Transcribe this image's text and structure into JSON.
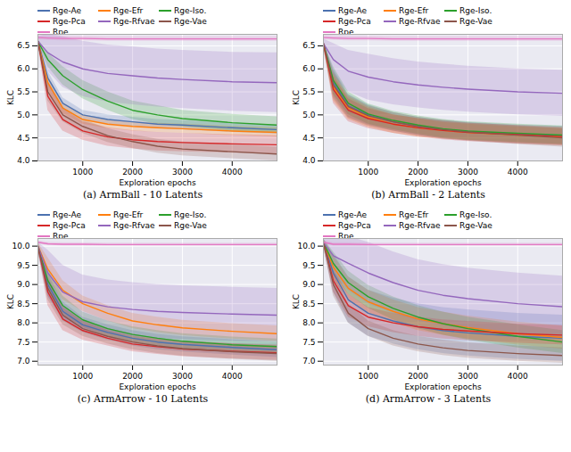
{
  "chart_data": [
    {
      "type": "line",
      "title": "(a) ArmBall - 10 Latents",
      "x_label": "Exploration epochs",
      "y_label": "KLC",
      "x": [
        100,
        300,
        600,
        1000,
        1500,
        2000,
        2500,
        3000,
        4000,
        4900
      ],
      "xlim": [
        100,
        4900
      ],
      "xticks": [
        1000,
        2000,
        3000,
        4000
      ],
      "ylim": [
        4.0,
        6.75
      ],
      "yticks": [
        {
          "value": 4,
          "label": "4.0"
        },
        4.5,
        {
          "value": 5,
          "label": "5.0"
        },
        5.5,
        {
          "value": 6,
          "label": "6.0"
        },
        6.5
      ],
      "grid": true,
      "legend": "top",
      "series": [
        {
          "name": "Rge-Ae",
          "color": "#4c72b0",
          "values": [
            6.6,
            5.8,
            5.25,
            5.0,
            4.9,
            4.85,
            4.8,
            4.78,
            4.72,
            4.68
          ],
          "std": [
            0.05,
            0.15,
            0.12,
            0.1,
            0.1,
            0.1,
            0.1,
            0.1,
            0.1,
            0.1
          ]
        },
        {
          "name": "Rge-Efr",
          "color": "#ff7f0e",
          "values": [
            6.6,
            5.7,
            5.15,
            4.9,
            4.8,
            4.75,
            4.72,
            4.7,
            4.65,
            4.62
          ],
          "std": [
            0.05,
            0.15,
            0.12,
            0.1,
            0.1,
            0.1,
            0.1,
            0.1,
            0.1,
            0.1
          ]
        },
        {
          "name": "Rge-Iso.",
          "color": "#2ca02c",
          "values": [
            6.6,
            6.2,
            5.85,
            5.55,
            5.3,
            5.1,
            5.0,
            4.92,
            4.83,
            4.78
          ],
          "std": [
            0.05,
            0.15,
            0.2,
            0.2,
            0.2,
            0.2,
            0.2,
            0.18,
            0.18,
            0.18
          ]
        },
        {
          "name": "Rge-Pca",
          "color": "#d62728",
          "values": [
            6.6,
            5.4,
            4.9,
            4.65,
            4.52,
            4.46,
            4.42,
            4.4,
            4.37,
            4.35
          ],
          "std": [
            0.05,
            0.3,
            0.25,
            0.2,
            0.2,
            0.2,
            0.2,
            0.2,
            0.2,
            0.2
          ]
        },
        {
          "name": "Rge-Rfvae",
          "color": "#9467bd",
          "values": [
            6.6,
            6.35,
            6.15,
            6.0,
            5.9,
            5.85,
            5.8,
            5.77,
            5.72,
            5.7
          ],
          "std": [
            0.1,
            0.4,
            0.55,
            0.6,
            0.62,
            0.63,
            0.63,
            0.63,
            0.64,
            0.65
          ]
        },
        {
          "name": "Rge-Vae",
          "color": "#8c564b",
          "values": [
            6.6,
            5.5,
            5.0,
            4.75,
            4.55,
            4.42,
            4.32,
            4.26,
            4.2,
            4.15
          ],
          "std": [
            0.05,
            0.2,
            0.15,
            0.15,
            0.15,
            0.15,
            0.15,
            0.15,
            0.15,
            0.15
          ]
        },
        {
          "name": "Rpe",
          "color": "#e377c2",
          "values": [
            6.68,
            6.67,
            6.66,
            6.66,
            6.65,
            6.65,
            6.65,
            6.65,
            6.65,
            6.65
          ],
          "std": [
            0.05,
            0.05,
            0.05,
            0.05,
            0.05,
            0.05,
            0.05,
            0.05,
            0.05,
            0.05
          ]
        }
      ]
    },
    {
      "type": "line",
      "title": "(b) ArmBall - 2 Latents",
      "x_label": "Exploration epochs",
      "y_label": "KLC",
      "x": [
        100,
        300,
        600,
        1000,
        1500,
        2000,
        2500,
        3000,
        4000,
        4900
      ],
      "xlim": [
        100,
        4900
      ],
      "xticks": [
        1000,
        2000,
        3000,
        4000
      ],
      "ylim": [
        4.0,
        6.75
      ],
      "yticks": [
        {
          "value": 4,
          "label": "4.0"
        },
        4.5,
        {
          "value": 5,
          "label": "5.0"
        },
        5.5,
        {
          "value": 6,
          "label": "6.0"
        },
        6.5
      ],
      "grid": true,
      "legend": "top",
      "series": [
        {
          "name": "Rge-Ae",
          "color": "#4c72b0",
          "values": [
            6.55,
            5.7,
            5.2,
            5.0,
            4.85,
            4.75,
            4.68,
            4.64,
            4.58,
            4.55
          ],
          "std": [
            0.05,
            0.3,
            0.25,
            0.22,
            0.2,
            0.2,
            0.2,
            0.2,
            0.2,
            0.2
          ]
        },
        {
          "name": "Rge-Efr",
          "color": "#ff7f0e",
          "values": [
            6.55,
            5.6,
            5.15,
            4.95,
            4.8,
            4.72,
            4.66,
            4.62,
            4.56,
            4.52
          ],
          "std": [
            0.05,
            0.3,
            0.25,
            0.22,
            0.2,
            0.2,
            0.18,
            0.18,
            0.18,
            0.18
          ]
        },
        {
          "name": "Rge-Iso.",
          "color": "#2ca02c",
          "values": [
            6.55,
            5.75,
            5.25,
            5.02,
            4.88,
            4.78,
            4.7,
            4.65,
            4.6,
            4.56
          ],
          "std": [
            0.05,
            0.3,
            0.25,
            0.22,
            0.2,
            0.2,
            0.2,
            0.2,
            0.2,
            0.2
          ]
        },
        {
          "name": "Rge-Pca",
          "color": "#d62728",
          "values": [
            6.55,
            5.55,
            5.1,
            4.92,
            4.8,
            4.72,
            4.66,
            4.62,
            4.57,
            4.53
          ],
          "std": [
            0.05,
            0.3,
            0.25,
            0.22,
            0.2,
            0.2,
            0.2,
            0.2,
            0.2,
            0.2
          ]
        },
        {
          "name": "Rge-Rfvae",
          "color": "#9467bd",
          "values": [
            6.55,
            6.2,
            5.95,
            5.82,
            5.72,
            5.65,
            5.6,
            5.56,
            5.5,
            5.47
          ],
          "std": [
            0.1,
            0.35,
            0.45,
            0.5,
            0.5,
            0.5,
            0.5,
            0.5,
            0.5,
            0.5
          ]
        },
        {
          "name": "Rge-Vae",
          "color": "#8c564b",
          "values": [
            6.55,
            5.65,
            5.18,
            4.98,
            4.85,
            4.75,
            4.68,
            4.63,
            4.56,
            4.5
          ],
          "std": [
            0.05,
            0.3,
            0.25,
            0.22,
            0.2,
            0.2,
            0.2,
            0.2,
            0.2,
            0.2
          ]
        },
        {
          "name": "Rpe",
          "color": "#e377c2",
          "values": [
            6.68,
            6.67,
            6.66,
            6.66,
            6.65,
            6.65,
            6.65,
            6.65,
            6.65,
            6.65
          ],
          "std": [
            0.05,
            0.05,
            0.05,
            0.05,
            0.05,
            0.05,
            0.05,
            0.05,
            0.05,
            0.05
          ]
        }
      ]
    },
    {
      "type": "line",
      "title": "(c) ArmArrow - 10 Latents",
      "x_label": "Exploration epochs",
      "y_label": "KLC",
      "x": [
        100,
        300,
        600,
        1000,
        1500,
        2000,
        2500,
        3000,
        4000,
        4900
      ],
      "xlim": [
        100,
        4900
      ],
      "xticks": [
        1000,
        2000,
        3000,
        4000
      ],
      "ylim": [
        6.9,
        10.2
      ],
      "yticks": [
        {
          "value": 7,
          "label": "7.0"
        },
        7.5,
        {
          "value": 8,
          "label": "8.0"
        },
        8.5,
        {
          "value": 9,
          "label": "9.0"
        },
        9.5,
        {
          "value": 10,
          "label": "10.0"
        }
      ],
      "grid": true,
      "legend": "top",
      "series": [
        {
          "name": "Rge-Ae",
          "color": "#4c72b0",
          "values": [
            10.0,
            9.0,
            8.3,
            7.95,
            7.75,
            7.6,
            7.5,
            7.44,
            7.36,
            7.3
          ],
          "std": [
            0.1,
            0.3,
            0.25,
            0.2,
            0.2,
            0.2,
            0.2,
            0.2,
            0.2,
            0.2
          ]
        },
        {
          "name": "Rge-Efr",
          "color": "#ff7f0e",
          "values": [
            10.0,
            9.4,
            8.85,
            8.5,
            8.25,
            8.05,
            7.95,
            7.87,
            7.78,
            7.72
          ],
          "std": [
            0.1,
            0.3,
            0.25,
            0.2,
            0.2,
            0.2,
            0.2,
            0.2,
            0.2,
            0.2
          ]
        },
        {
          "name": "Rge-Iso.",
          "color": "#2ca02c",
          "values": [
            10.0,
            9.1,
            8.45,
            8.08,
            7.85,
            7.7,
            7.6,
            7.52,
            7.43,
            7.38
          ],
          "std": [
            0.1,
            0.3,
            0.25,
            0.2,
            0.2,
            0.2,
            0.2,
            0.2,
            0.2,
            0.2
          ]
        },
        {
          "name": "Rge-Pca",
          "color": "#d62728",
          "values": [
            10.0,
            8.8,
            8.1,
            7.8,
            7.6,
            7.45,
            7.38,
            7.32,
            7.26,
            7.22
          ],
          "std": [
            0.1,
            0.35,
            0.3,
            0.25,
            0.2,
            0.2,
            0.2,
            0.2,
            0.2,
            0.2
          ]
        },
        {
          "name": "Rge-Rfvae",
          "color": "#9467bd",
          "values": [
            10.0,
            9.3,
            8.8,
            8.55,
            8.42,
            8.35,
            8.3,
            8.27,
            8.23,
            8.2
          ],
          "std": [
            0.1,
            0.6,
            0.7,
            0.7,
            0.7,
            0.7,
            0.7,
            0.7,
            0.7,
            0.7
          ]
        },
        {
          "name": "Rge-Vae",
          "color": "#8c564b",
          "values": [
            10.0,
            8.9,
            8.2,
            7.85,
            7.65,
            7.5,
            7.4,
            7.33,
            7.25,
            7.2
          ],
          "std": [
            0.1,
            0.3,
            0.25,
            0.2,
            0.2,
            0.2,
            0.2,
            0.2,
            0.2,
            0.2
          ]
        },
        {
          "name": "Rpe",
          "color": "#e377c2",
          "values": [
            10.1,
            10.06,
            10.05,
            10.05,
            10.04,
            10.04,
            10.04,
            10.04,
            10.04,
            10.04
          ],
          "std": [
            0.04,
            0.04,
            0.04,
            0.04,
            0.04,
            0.04,
            0.04,
            0.04,
            0.04,
            0.04
          ]
        }
      ]
    },
    {
      "type": "line",
      "title": "(d) ArmArrow - 3 Latents",
      "x_label": "Exploration epochs",
      "y_label": "KLC",
      "x": [
        100,
        300,
        600,
        1000,
        1500,
        2000,
        2500,
        3000,
        4000,
        4900
      ],
      "xlim": [
        100,
        4900
      ],
      "xticks": [
        1000,
        2000,
        3000,
        4000
      ],
      "ylim": [
        6.9,
        10.2
      ],
      "yticks": [
        {
          "value": 7,
          "label": "7.0"
        },
        7.5,
        {
          "value": 8,
          "label": "8.0"
        },
        8.5,
        {
          "value": 9,
          "label": "9.0"
        },
        9.5,
        {
          "value": 10,
          "label": "10.0"
        }
      ],
      "grid": true,
      "legend": "top",
      "series": [
        {
          "name": "Rge-Ae",
          "color": "#4c72b0",
          "values": [
            10.1,
            9.3,
            8.6,
            8.25,
            8.05,
            7.9,
            7.8,
            7.74,
            7.65,
            7.6
          ],
          "std": [
            0.1,
            0.5,
            0.6,
            0.6,
            0.6,
            0.6,
            0.6,
            0.6,
            0.6,
            0.6
          ]
        },
        {
          "name": "Rge-Efr",
          "color": "#ff7f0e",
          "values": [
            10.1,
            9.45,
            8.9,
            8.55,
            8.3,
            8.1,
            7.98,
            7.88,
            7.72,
            7.62
          ],
          "std": [
            0.1,
            0.3,
            0.3,
            0.3,
            0.3,
            0.3,
            0.3,
            0.3,
            0.3,
            0.3
          ]
        },
        {
          "name": "Rge-Iso.",
          "color": "#2ca02c",
          "values": [
            10.1,
            9.55,
            9.05,
            8.68,
            8.38,
            8.15,
            7.98,
            7.85,
            7.65,
            7.5
          ],
          "std": [
            0.1,
            0.3,
            0.3,
            0.3,
            0.3,
            0.3,
            0.3,
            0.3,
            0.3,
            0.3
          ]
        },
        {
          "name": "Rge-Pca",
          "color": "#d62728",
          "values": [
            10.1,
            9.1,
            8.45,
            8.15,
            8.0,
            7.9,
            7.83,
            7.79,
            7.72,
            7.68
          ],
          "std": [
            0.1,
            0.3,
            0.3,
            0.25,
            0.25,
            0.25,
            0.25,
            0.25,
            0.25,
            0.25
          ]
        },
        {
          "name": "Rge-Rfvae",
          "color": "#9467bd",
          "values": [
            10.1,
            9.75,
            9.55,
            9.3,
            9.05,
            8.85,
            8.72,
            8.63,
            8.5,
            8.42
          ],
          "std": [
            0.1,
            0.5,
            0.7,
            0.8,
            0.8,
            0.8,
            0.8,
            0.8,
            0.8,
            0.8
          ]
        },
        {
          "name": "Rge-Vae",
          "color": "#8c564b",
          "values": [
            10.1,
            9.0,
            8.25,
            7.85,
            7.6,
            7.45,
            7.35,
            7.28,
            7.2,
            7.15
          ],
          "std": [
            0.1,
            0.3,
            0.25,
            0.2,
            0.2,
            0.2,
            0.2,
            0.2,
            0.2,
            0.2
          ]
        },
        {
          "name": "Rpe",
          "color": "#e377c2",
          "values": [
            10.1,
            10.05,
            10.05,
            10.04,
            10.04,
            10.04,
            10.04,
            10.04,
            10.04,
            10.04
          ],
          "std": [
            0.04,
            0.04,
            0.04,
            0.04,
            0.04,
            0.04,
            0.04,
            0.04,
            0.04,
            0.04
          ]
        }
      ]
    }
  ]
}
